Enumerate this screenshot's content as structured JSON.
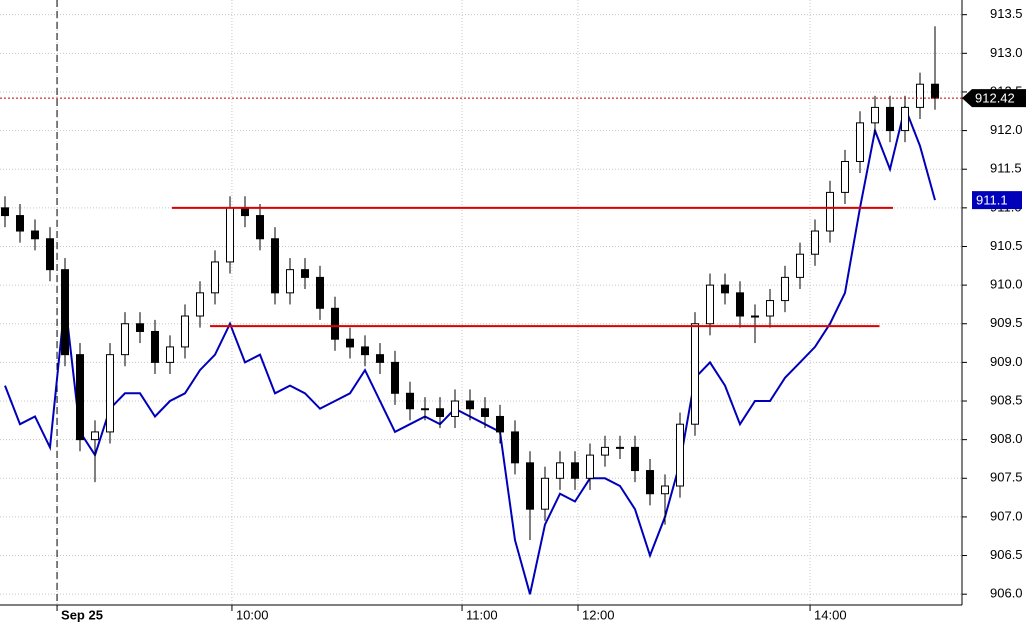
{
  "chart_data": {
    "type": "candlestick",
    "xlim": [
      -0.333,
      63.8
    ],
    "ylim": [
      905.86,
      913.69
    ],
    "grid": true,
    "session_break": 3.47,
    "xticks": [
      {
        "value": 3.47,
        "label": "Sep 25"
      },
      {
        "value": 15.13,
        "label": "10:00"
      },
      {
        "value": 30.47,
        "label": "11:00"
      },
      {
        "value": 38.2,
        "label": "12:00"
      },
      {
        "value": 53.67,
        "label": "14:00"
      }
    ],
    "yticks": [
      {
        "value": 906,
        "label": "906.0"
      },
      {
        "value": 906.5,
        "label": "906.5"
      },
      {
        "value": 907,
        "label": "907.0"
      },
      {
        "value": 907.5,
        "label": "907.5"
      },
      {
        "value": 908,
        "label": "908.0"
      },
      {
        "value": 908.5,
        "label": "908.5"
      },
      {
        "value": 909,
        "label": "909.0"
      },
      {
        "value": 909.5,
        "label": "909.5"
      },
      {
        "value": 910,
        "label": "910.0"
      },
      {
        "value": 910.5,
        "label": "910.5"
      },
      {
        "value": 911,
        "label": "911.0"
      },
      {
        "value": 911.5,
        "label": "911.5"
      },
      {
        "value": 912,
        "label": "912.0"
      },
      {
        "value": 912.5,
        "label": "912.5"
      },
      {
        "value": 913,
        "label": "913.0"
      },
      {
        "value": 913.5,
        "label": "913.5"
      }
    ],
    "candle_color": "#000000",
    "up_fill": "#ffffff",
    "open": [
      911.0,
      910.9,
      910.7,
      910.6,
      910.2,
      909.1,
      908.0,
      908.1,
      909.1,
      909.5,
      909.4,
      909.0,
      909.2,
      909.6,
      909.9,
      910.3,
      911.0,
      910.9,
      910.6,
      909.9,
      910.2,
      910.1,
      909.7,
      909.3,
      909.2,
      909.1,
      909.0,
      908.6,
      908.4,
      908.4,
      908.3,
      908.5,
      908.4,
      908.3,
      908.1,
      907.7,
      907.1,
      907.5,
      907.7,
      907.5,
      907.8,
      907.9,
      907.9,
      907.6,
      907.3,
      907.4,
      908.2,
      909.5,
      910.0,
      909.9,
      909.6,
      909.6,
      909.8,
      910.1,
      910.4,
      910.7,
      911.2,
      911.6,
      912.1,
      912.3,
      912.0,
      912.3,
      912.6
    ],
    "high": [
      911.15,
      911.05,
      910.85,
      910.75,
      910.35,
      909.25,
      908.25,
      909.25,
      909.65,
      909.65,
      909.55,
      909.35,
      909.75,
      910.05,
      910.45,
      911.15,
      911.15,
      911.05,
      910.75,
      910.35,
      910.35,
      910.25,
      909.85,
      909.45,
      909.35,
      909.25,
      909.15,
      908.75,
      908.55,
      908.55,
      908.65,
      908.65,
      908.55,
      908.45,
      908.25,
      907.85,
      907.65,
      907.85,
      907.85,
      907.95,
      908.05,
      908.05,
      908.05,
      907.75,
      907.55,
      908.35,
      909.65,
      910.15,
      910.15,
      910.05,
      909.75,
      909.95,
      910.25,
      910.55,
      910.85,
      911.35,
      911.75,
      912.25,
      912.45,
      912.45,
      912.45,
      912.75,
      913.35
    ],
    "low": [
      910.75,
      910.55,
      910.45,
      910.05,
      908.95,
      907.85,
      907.45,
      907.95,
      908.95,
      909.25,
      908.85,
      908.85,
      909.05,
      909.45,
      909.75,
      910.15,
      910.75,
      910.45,
      909.75,
      909.75,
      909.95,
      909.55,
      909.15,
      909.05,
      908.95,
      908.85,
      908.45,
      908.25,
      908.25,
      908.15,
      908.15,
      908.25,
      908.15,
      907.95,
      907.55,
      906.7,
      906.95,
      907.35,
      907.35,
      907.35,
      907.65,
      907.75,
      907.45,
      907.15,
      906.9,
      907.25,
      908.05,
      909.35,
      909.75,
      909.45,
      909.25,
      909.45,
      909.65,
      909.95,
      910.25,
      910.55,
      911.05,
      911.45,
      911.95,
      911.85,
      911.85,
      912.15,
      912.27
    ],
    "close": [
      910.9,
      910.7,
      910.6,
      910.2,
      909.1,
      908.0,
      908.1,
      909.1,
      909.5,
      909.4,
      909.0,
      909.2,
      909.6,
      909.9,
      910.3,
      911.0,
      910.9,
      910.6,
      909.9,
      910.2,
      910.1,
      909.7,
      909.3,
      909.2,
      909.1,
      909.0,
      908.6,
      908.4,
      908.4,
      908.3,
      908.5,
      908.4,
      908.3,
      908.1,
      907.7,
      907.1,
      907.5,
      907.7,
      907.5,
      907.8,
      907.9,
      907.9,
      907.6,
      907.3,
      907.4,
      908.2,
      909.5,
      910.0,
      909.9,
      909.6,
      909.6,
      909.8,
      910.1,
      910.4,
      910.7,
      911.2,
      911.6,
      912.1,
      912.3,
      912.0,
      912.3,
      912.6,
      912.42
    ],
    "line": {
      "color": "#0000bb",
      "values": [
        908.7,
        908.2,
        908.3,
        907.9,
        909.8,
        908.1,
        907.8,
        908.4,
        908.6,
        908.6,
        908.3,
        908.5,
        908.6,
        908.9,
        909.1,
        909.5,
        909.0,
        909.1,
        908.6,
        908.7,
        908.6,
        908.4,
        908.5,
        908.6,
        908.9,
        908.5,
        908.1,
        908.2,
        908.3,
        908.2,
        908.4,
        908.3,
        908.2,
        908.1,
        906.7,
        906.0,
        906.9,
        907.3,
        907.2,
        907.5,
        907.5,
        907.4,
        907.1,
        906.5,
        907.0,
        907.7,
        908.8,
        909.0,
        908.7,
        908.2,
        908.5,
        908.5,
        908.8,
        909.0,
        909.2,
        909.5,
        909.9,
        911.0,
        912.0,
        911.5,
        912.3,
        911.8,
        911.1
      ]
    },
    "hlines": [
      {
        "value": 911.0,
        "start": 11.13,
        "end": 59.2,
        "color": "#dd0000"
      },
      {
        "value": 909.47,
        "start": 13.67,
        "end": 58.3,
        "color": "#dd0000"
      }
    ],
    "price_line_color": "#cc0000"
  }
}
